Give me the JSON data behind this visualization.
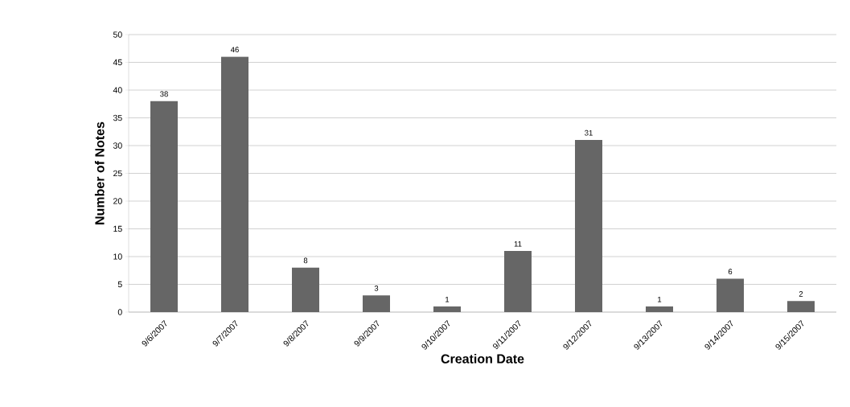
{
  "chart_data": {
    "type": "bar",
    "xlabel": "Creation Date",
    "ylabel": "Number of Notes",
    "categories": [
      "9/6/2007",
      "9/7/2007",
      "9/8/2007",
      "9/9/2007",
      "9/10/2007",
      "9/11/2007",
      "9/12/2007",
      "9/13/2007",
      "9/14/2007",
      "9/15/2007"
    ],
    "values": [
      38,
      46,
      8,
      3,
      1,
      11,
      31,
      1,
      6,
      2
    ],
    "color": "#666666",
    "ylim": [
      0,
      50
    ],
    "yticks": [
      0,
      5,
      10,
      15,
      20,
      25,
      30,
      35,
      40,
      45,
      50
    ],
    "grid": "y",
    "data_labels": true
  }
}
